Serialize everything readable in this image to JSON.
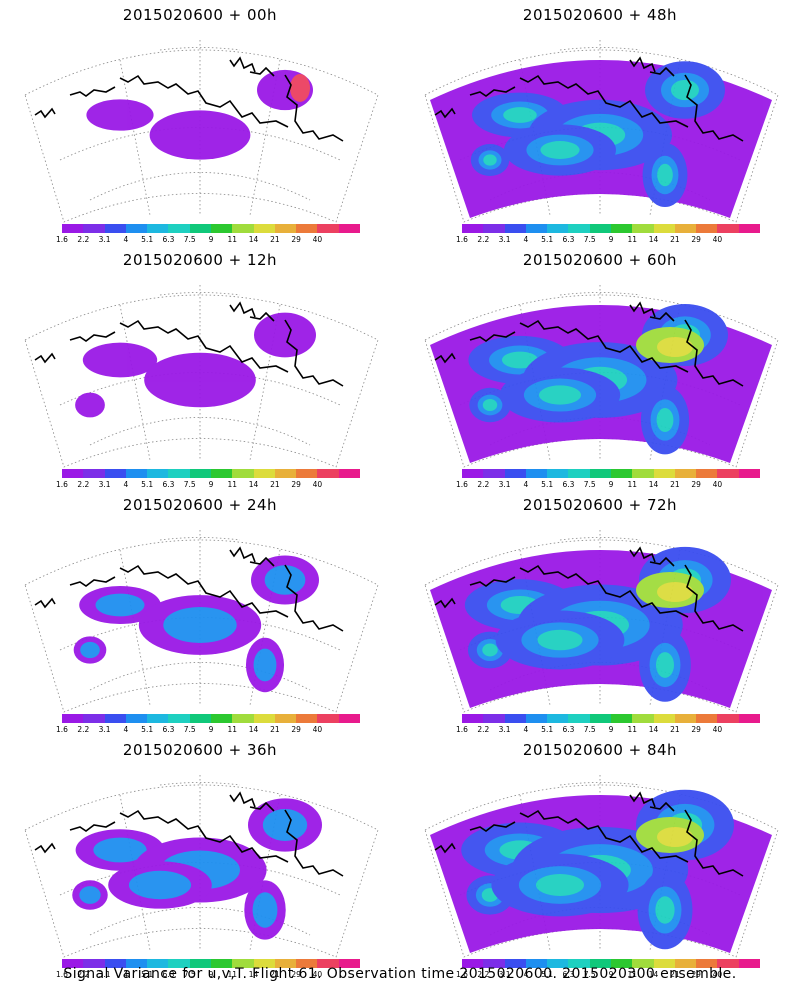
{
  "panels": [
    {
      "title": "2015020600  + 00h"
    },
    {
      "title": "2015020600  + 48h"
    },
    {
      "title": "2015020600  + 12h"
    },
    {
      "title": "2015020600  + 60h"
    },
    {
      "title": "2015020600  + 24h"
    },
    {
      "title": "2015020600  + 72h"
    },
    {
      "title": "2015020600  + 36h"
    },
    {
      "title": "2015020600  + 84h"
    }
  ],
  "colorbar": {
    "labels": [
      "1.6",
      "2.2",
      "3.1",
      "4",
      "5.1",
      "6.3",
      "7.5",
      "9",
      "11",
      "14",
      "21",
      "29",
      "40"
    ],
    "colors": [
      "#9a19e6",
      "#7c2ee8",
      "#3a4ef0",
      "#1e8ff0",
      "#1db8e0",
      "#1ed0c0",
      "#10c87a",
      "#2cc830",
      "#a0dc3c",
      "#dcdc3c",
      "#e8b03a",
      "#ec7a3a",
      "#ec4060",
      "#e81a8c"
    ]
  },
  "footer": {
    "caption": "Signal Variance for u,v,T. Flight 61. Observation time 2015020600. 2015020300 ensemble."
  }
}
